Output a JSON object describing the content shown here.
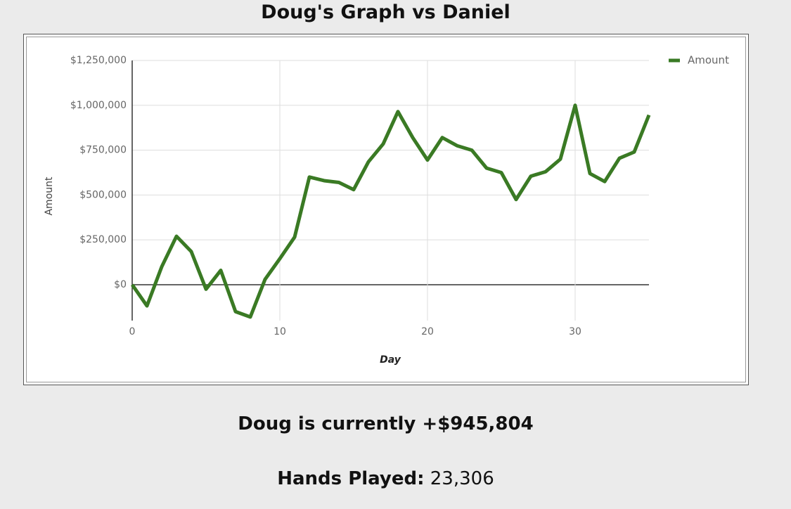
{
  "chart_data": {
    "type": "line",
    "title": "Doug's Graph vs Daniel",
    "x_label": "Day",
    "y_label": "Amount",
    "x": [
      0,
      1,
      2,
      3,
      4,
      5,
      6,
      7,
      8,
      9,
      10,
      11,
      12,
      13,
      14,
      15,
      16,
      17,
      18,
      19,
      20,
      21,
      22,
      23,
      24,
      25,
      26,
      27,
      28,
      29,
      30,
      31,
      32,
      33,
      34,
      35
    ],
    "series": [
      {
        "name": "Amount",
        "color": "#3a7a24",
        "values": [
          0,
          -118000,
          100000,
          270000,
          185000,
          -25000,
          80000,
          -150000,
          -180000,
          30000,
          145000,
          265000,
          600000,
          580000,
          570000,
          530000,
          685000,
          785000,
          965000,
          820000,
          695000,
          820000,
          775000,
          750000,
          650000,
          625000,
          475000,
          605000,
          630000,
          700000,
          1000000,
          620000,
          575000,
          705000,
          740000,
          945804
        ]
      }
    ],
    "xlim": [
      0,
      35
    ],
    "xticks": [
      0,
      10,
      20,
      30
    ],
    "ylim": [
      -200000,
      1250000
    ],
    "yticks": [
      {
        "value": 0,
        "label": "$0"
      },
      {
        "value": 250000,
        "label": "$250,000"
      },
      {
        "value": 500000,
        "label": "$500,000"
      },
      {
        "value": 750000,
        "label": "$750,000"
      },
      {
        "value": 1000000,
        "label": "$1,000,000"
      },
      {
        "value": 1250000,
        "label": "$1,250,000"
      }
    ],
    "grid": true,
    "legend": "top-right"
  },
  "status": "Doug is currently +$945,804",
  "hands": {
    "label": "Hands Played:",
    "value": "23,306"
  }
}
